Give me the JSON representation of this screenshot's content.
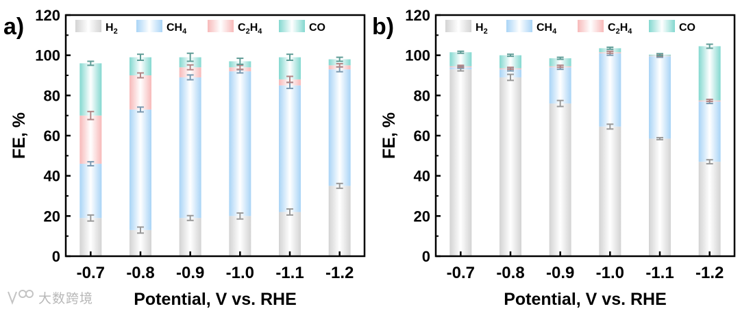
{
  "chart_data": [
    {
      "type": "bar",
      "stacked": true,
      "panel_label": "a)",
      "categories": [
        "-0.7",
        "-0.8",
        "-0.9",
        "-1.0",
        "-1.1",
        "-1.2"
      ],
      "xlabel": "Potential, V vs. RHE",
      "ylabel": "FE, %",
      "ylim": [
        0,
        120
      ],
      "yticks": [
        "0",
        "20",
        "40",
        "60",
        "80",
        "100",
        "120"
      ],
      "legend_position": "top",
      "grid": false,
      "series": [
        {
          "name": "H2",
          "label_main": "H",
          "label_sub": "2",
          "color": "#d3d3d3",
          "values": [
            19,
            13,
            19,
            20,
            22,
            35
          ],
          "errors": [
            1.5,
            1.5,
            1.2,
            1.5,
            1.5,
            1.2
          ]
        },
        {
          "name": "CH4",
          "label_main": "CH",
          "label_sub": "4",
          "color": "#a9d4f6",
          "values": [
            27,
            60,
            70,
            72,
            63,
            58
          ],
          "errors": [
            1.0,
            1.2,
            1.2,
            0.8,
            1.5,
            1.2
          ]
        },
        {
          "name": "C2H4",
          "label_main": "C",
          "label_sub": "2",
          "label_main2": "H",
          "label_sub2": "4",
          "color": "#f7b9b9",
          "values": [
            24,
            17,
            5,
            2,
            3,
            2
          ],
          "errors": [
            2.0,
            1.2,
            1.2,
            1.0,
            1.5,
            0.8
          ]
        },
        {
          "name": "CO",
          "label_main": "CO",
          "color": "#84d8d0",
          "values": [
            26,
            9,
            5,
            3,
            11,
            3
          ],
          "errors": [
            1.0,
            1.5,
            2.0,
            1.5,
            1.5,
            1.0
          ]
        }
      ]
    },
    {
      "type": "bar",
      "stacked": true,
      "panel_label": "b)",
      "categories": [
        "-0.7",
        "-0.8",
        "-0.9",
        "-1.0",
        "-1.1",
        "-1.2"
      ],
      "xlabel": "Potential, V vs. RHE",
      "ylabel": "FE, %",
      "ylim": [
        0,
        120
      ],
      "yticks": [
        "0",
        "20",
        "40",
        "60",
        "80",
        "100",
        "120"
      ],
      "legend_position": "top",
      "grid": false,
      "series": [
        {
          "name": "H2",
          "label_main": "H",
          "label_sub": "2",
          "color": "#d3d3d3",
          "values": [
            93,
            89,
            76,
            64.5,
            58.5,
            47
          ],
          "errors": [
            0.8,
            1.5,
            1.5,
            1.2,
            0.5,
            1.0
          ]
        },
        {
          "name": "CH4",
          "label_main": "CH",
          "label_sub": "4",
          "color": "#a9d4f6",
          "values": [
            1,
            4,
            18,
            36.5,
            41,
            30
          ],
          "errors": [
            0.5,
            0.8,
            1.0,
            1.0,
            0.5,
            1.0
          ]
        },
        {
          "name": "C2H4",
          "label_main": "C",
          "label_sub": "2",
          "label_main2": "H",
          "label_sub2": "4",
          "color": "#f7b9b9",
          "values": [
            0.5,
            0.5,
            0.5,
            0.5,
            0.3,
            0.5
          ],
          "errors": [
            0.5,
            0.5,
            0.5,
            0.5,
            0.3,
            0.5
          ]
        },
        {
          "name": "CO",
          "label_main": "CO",
          "color": "#84d8d0",
          "values": [
            7,
            6.5,
            4,
            2,
            0.5,
            27
          ],
          "errors": [
            0.5,
            0.5,
            0.5,
            0.5,
            0.5,
            1.0
          ]
        }
      ]
    }
  ],
  "watermark": {
    "text": "大数跨境"
  }
}
